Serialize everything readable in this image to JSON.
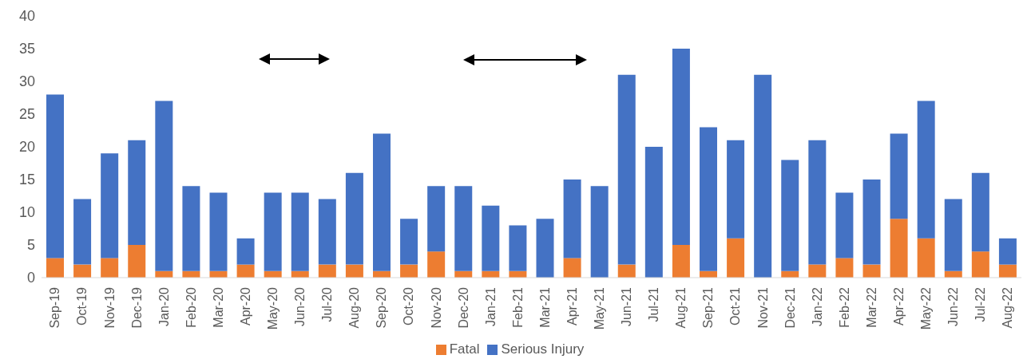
{
  "chart_data": {
    "type": "bar",
    "stacked": true,
    "categories": [
      "Sep-19",
      "Oct-19",
      "Nov-19",
      "Dec-19",
      "Jan-20",
      "Feb-20",
      "Mar-20",
      "Apr-20",
      "May-20",
      "Jun-20",
      "Jul-20",
      "Aug-20",
      "Sep-20",
      "Oct-20",
      "Nov-20",
      "Dec-20",
      "Jan-21",
      "Feb-21",
      "Mar-21",
      "Apr-21",
      "May-21",
      "Jun-21",
      "Jul-21",
      "Aug-21",
      "Sep-21",
      "Oct-21",
      "Nov-21",
      "Dec-21",
      "Jan-22",
      "Feb-22",
      "Mar-22",
      "Apr-22",
      "May-22",
      "Jun-22",
      "Jul-22",
      "Aug-22"
    ],
    "series": [
      {
        "name": "Fatal",
        "color": "#ed7d31",
        "values": [
          3,
          2,
          3,
          5,
          1,
          1,
          1,
          2,
          1,
          1,
          2,
          2,
          1,
          2,
          4,
          1,
          1,
          1,
          0,
          3,
          0,
          2,
          0,
          5,
          1,
          6,
          0,
          1,
          2,
          3,
          2,
          9,
          6,
          1,
          4,
          2
        ]
      },
      {
        "name": "Serious Injury",
        "color": "#4472c4",
        "values": [
          25,
          10,
          16,
          16,
          26,
          13,
          12,
          4,
          12,
          12,
          10,
          14,
          21,
          7,
          10,
          13,
          10,
          7,
          9,
          12,
          14,
          29,
          20,
          30,
          22,
          15,
          31,
          17,
          19,
          10,
          13,
          13,
          21,
          11,
          12,
          4
        ]
      }
    ],
    "ylim": [
      0,
      40
    ],
    "yticks": [
      0,
      5,
      10,
      15,
      20,
      25,
      30,
      35,
      40
    ],
    "grid": false,
    "legend": "bottom"
  }
}
